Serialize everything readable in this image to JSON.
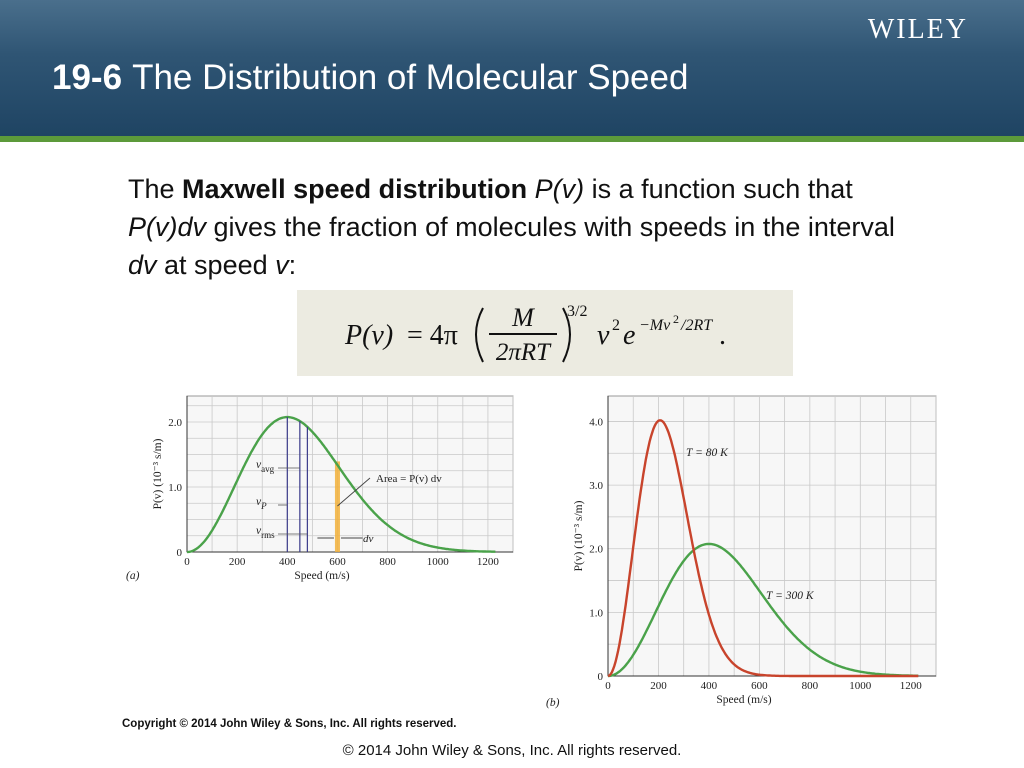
{
  "header": {
    "brand": "WILEY",
    "section_number": "19-6",
    "title": "The Distribution of Molecular Speed"
  },
  "body": {
    "p1": "The ",
    "term": "Maxwell speed distribution",
    "p2": " ",
    "func": "P(v)",
    "p3": " is a function such that ",
    "func_dv": "P(v)dv",
    "p4": " gives the fraction of molecules with speeds in the interval ",
    "dv": "dv",
    "p5": " at speed ",
    "v": "v",
    "p6": ":"
  },
  "formula": {
    "lhs": "P(v)",
    "eq": "= 4π",
    "num": "M",
    "den": "2πRT",
    "power": "3/2",
    "v2": "v",
    "v2exp": "2",
    "e": "e",
    "eexp": "−Mv",
    "eexp2": "2",
    "eexp3": "/2RT",
    "period": "."
  },
  "chart_data": [
    {
      "type": "line",
      "panel_label": "(a)",
      "xlabel": "Speed (m/s)",
      "ylabel": "P(v) (10⁻³ s/m)",
      "xlim": [
        0,
        1300
      ],
      "ylim": [
        0,
        2.4
      ],
      "xticks": [
        0,
        200,
        400,
        600,
        800,
        1000,
        1200
      ],
      "yticks": [
        0,
        1.0,
        2.0
      ],
      "ytick_labels": [
        "0",
        "1.0",
        "2.0"
      ],
      "grid": true,
      "series": [
        {
          "temperature_K": 300,
          "color": "#4aa24a"
        }
      ],
      "markers": [
        {
          "label": "v_P",
          "value": 400
        },
        {
          "label": "v_avg",
          "value": 450
        },
        {
          "label": "v_rms",
          "value": 480
        }
      ],
      "annotations": {
        "area": "Area = P(v) dv",
        "dv": "dv",
        "strip_x": [
          590,
          610
        ],
        "strip_color": "#f2b03a"
      }
    },
    {
      "type": "line",
      "panel_label": "(b)",
      "xlabel": "Speed (m/s)",
      "ylabel": "P(v) (10⁻³ s/m)",
      "xlim": [
        0,
        1300
      ],
      "ylim": [
        0,
        4.4
      ],
      "xticks": [
        0,
        200,
        400,
        600,
        800,
        1000,
        1200
      ],
      "yticks": [
        0,
        1.0,
        2.0,
        3.0,
        4.0
      ],
      "ytick_labels": [
        "0",
        "1.0",
        "2.0",
        "3.0",
        "4.0"
      ],
      "grid": true,
      "series": [
        {
          "name": "T = 80 K",
          "temperature_K": 80,
          "color": "#c8442c"
        },
        {
          "name": "T = 300 K",
          "temperature_K": 300,
          "color": "#4aa24a"
        }
      ]
    }
  ],
  "copyright_small": "Copyright © 2014 John Wiley & Sons, Inc. All rights reserved.",
  "footer": "© 2014 John Wiley & Sons, Inc. All rights reserved.",
  "colors": {
    "header": "#2f5574",
    "stripe": "#5c9a3a",
    "formula_bg": "#ecebe1"
  }
}
